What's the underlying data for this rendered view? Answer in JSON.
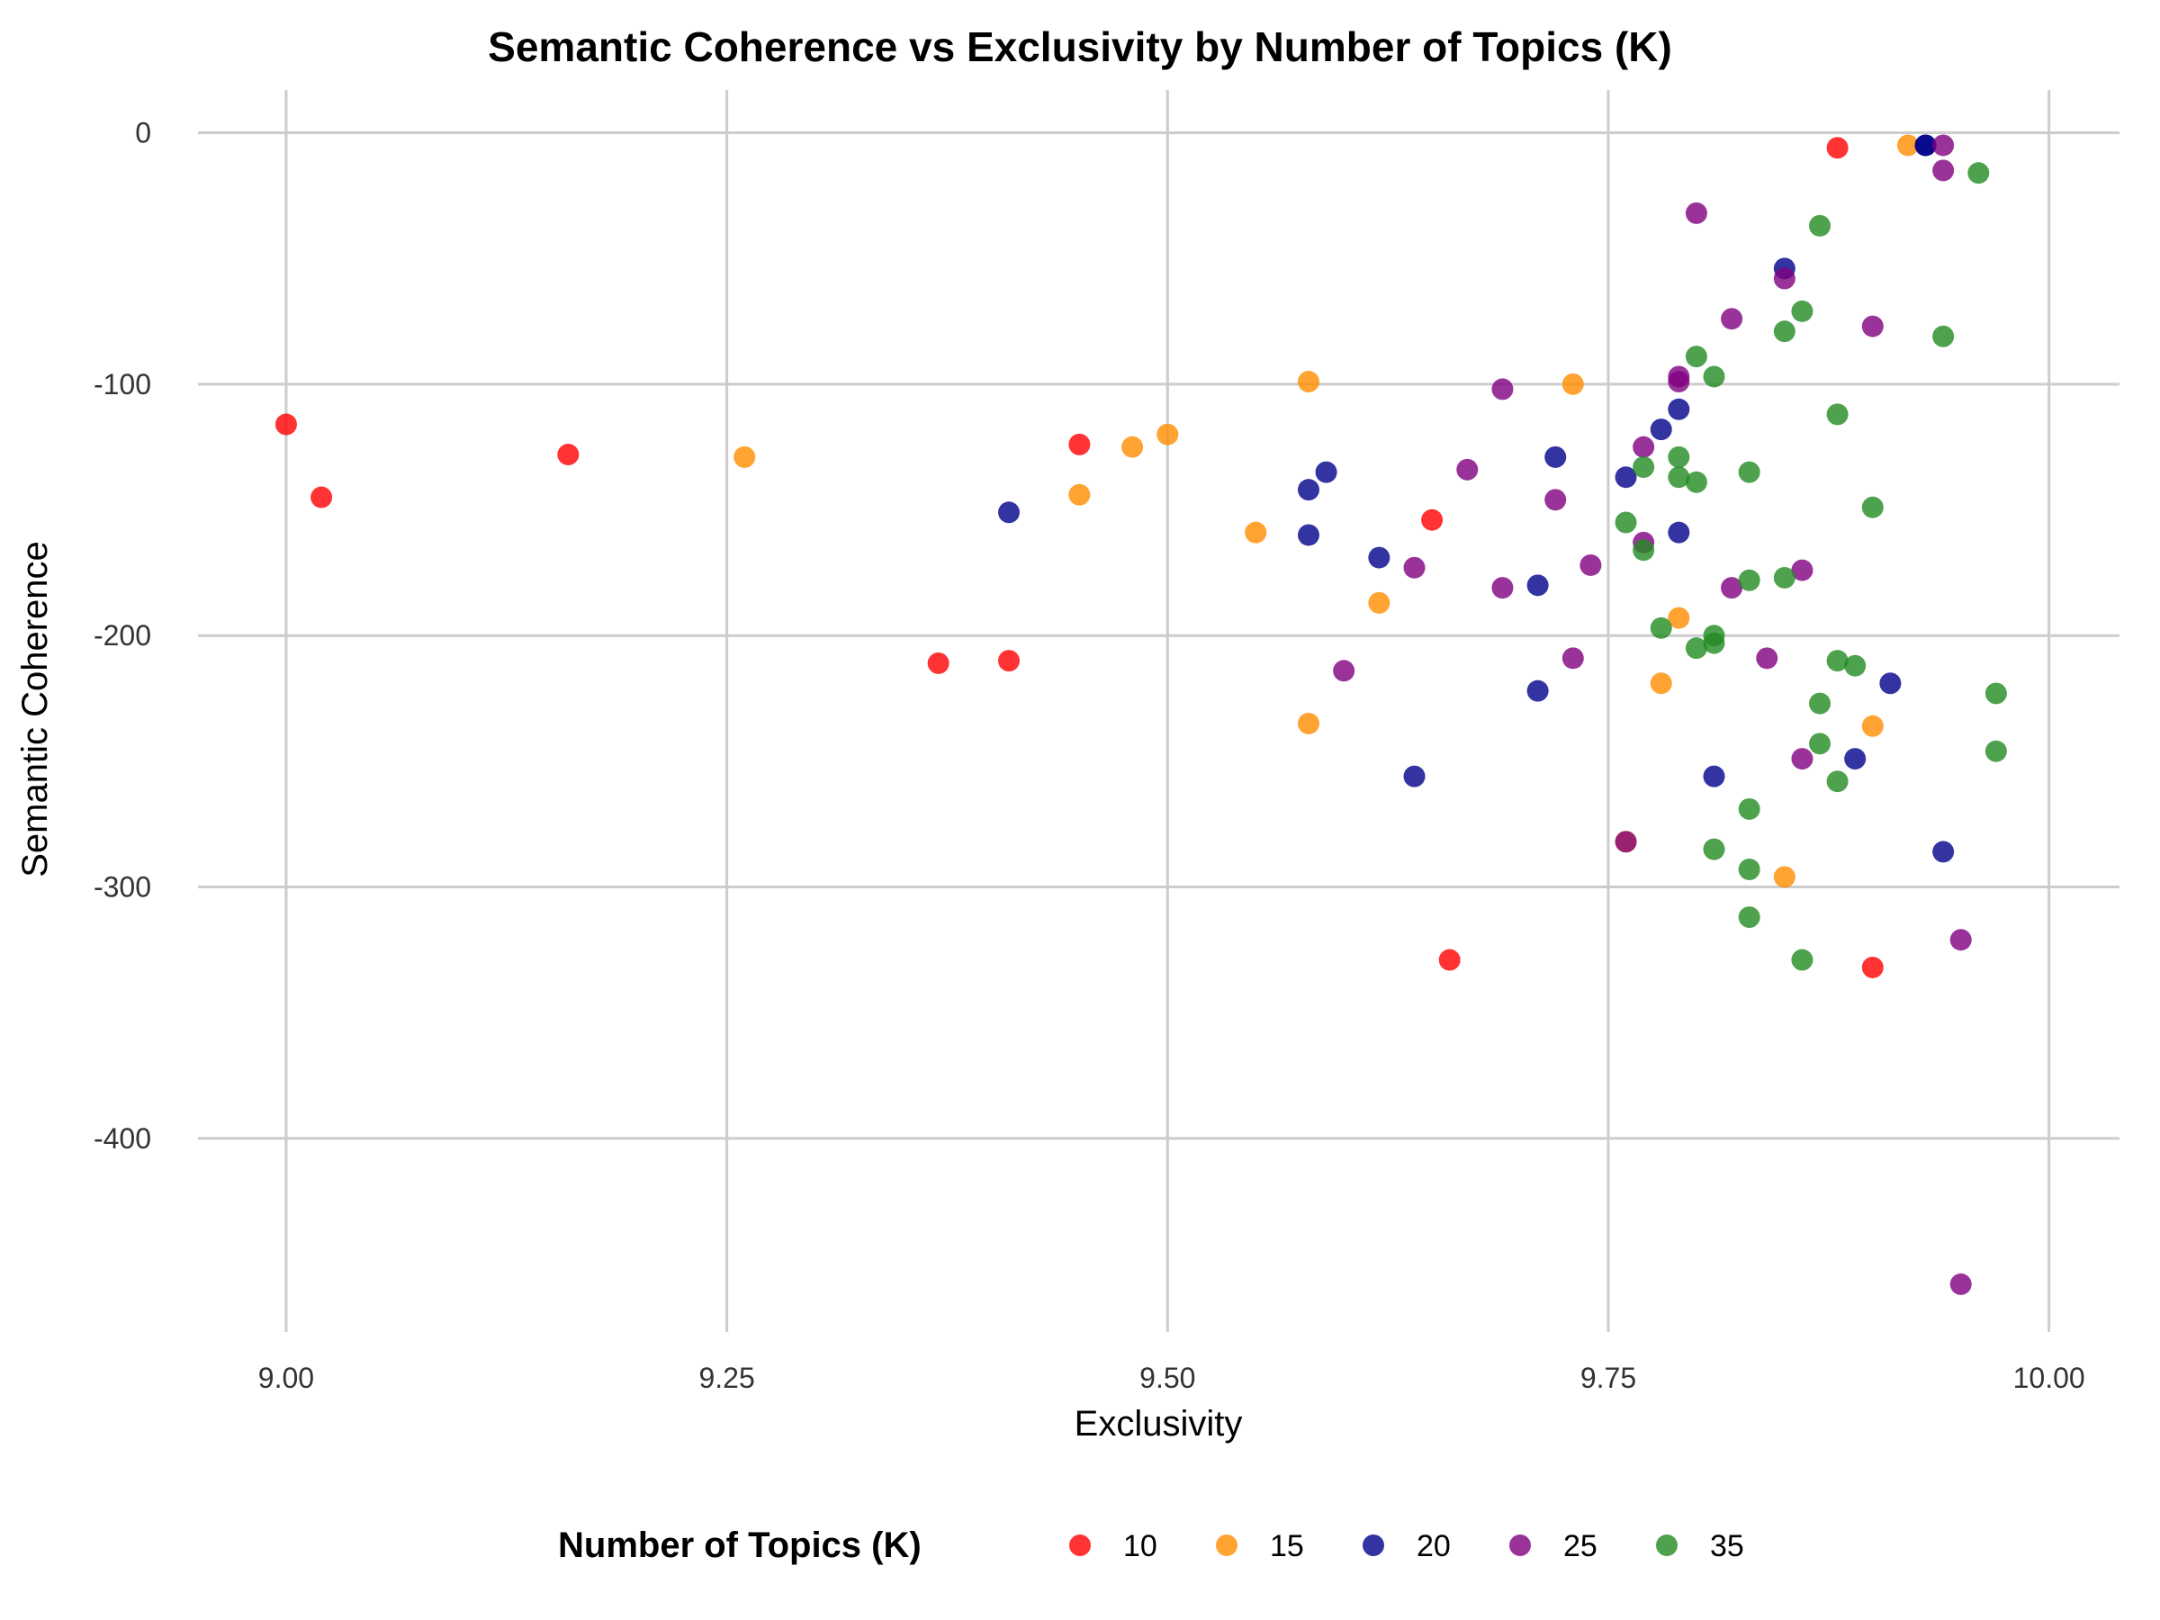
{
  "chart_data": {
    "type": "scatter",
    "title": "Semantic Coherence vs Exclusivity by Number of Topics (K)",
    "xlabel": "Exclusivity",
    "ylabel": "Semantic Coherence",
    "xlim": [
      8.95,
      10.04
    ],
    "ylim": [
      -477,
      17
    ],
    "x_ticks": [
      9.0,
      9.25,
      9.5,
      9.75,
      10.0
    ],
    "x_tick_labels": [
      "9.00",
      "9.25",
      "9.50",
      "9.75",
      "10.00"
    ],
    "y_ticks": [
      0,
      -100,
      -200,
      -300,
      -400
    ],
    "y_tick_labels": [
      "0",
      "-100",
      "-200",
      "-300",
      "-400"
    ],
    "grid": true,
    "legend_title": "Number of Topics (K)",
    "legend_position": "bottom",
    "series": [
      {
        "name": "10",
        "color": "#ff0000",
        "points": [
          [
            9.0,
            -116
          ],
          [
            9.02,
            -145
          ],
          [
            9.16,
            -128
          ],
          [
            9.37,
            -211
          ],
          [
            9.41,
            -210
          ],
          [
            9.45,
            -124
          ],
          [
            9.65,
            -154
          ],
          [
            9.66,
            -329
          ],
          [
            9.88,
            -6
          ],
          [
            9.9,
            -332
          ]
        ]
      },
      {
        "name": "15",
        "color": "#ff8c00",
        "points": [
          [
            9.26,
            -129
          ],
          [
            9.45,
            -144
          ],
          [
            9.48,
            -125
          ],
          [
            9.5,
            -120
          ],
          [
            9.55,
            -159
          ],
          [
            9.58,
            -99
          ],
          [
            9.58,
            -235
          ],
          [
            9.62,
            -187
          ],
          [
            9.73,
            -100
          ],
          [
            9.76,
            -282
          ],
          [
            9.78,
            -219
          ],
          [
            9.79,
            -193
          ],
          [
            9.85,
            -296
          ],
          [
            9.9,
            -236
          ],
          [
            9.92,
            -5
          ]
        ]
      },
      {
        "name": "20",
        "color": "#00008b",
        "points": [
          [
            9.41,
            -151
          ],
          [
            9.58,
            -160
          ],
          [
            9.58,
            -142
          ],
          [
            9.59,
            -135
          ],
          [
            9.62,
            -169
          ],
          [
            9.64,
            -256
          ],
          [
            9.71,
            -180
          ],
          [
            9.71,
            -222
          ],
          [
            9.72,
            -129
          ],
          [
            9.76,
            -137
          ],
          [
            9.78,
            -118
          ],
          [
            9.79,
            -110
          ],
          [
            9.79,
            -159
          ],
          [
            9.81,
            -256
          ],
          [
            9.85,
            -54
          ],
          [
            9.89,
            -249
          ],
          [
            9.91,
            -219
          ],
          [
            9.93,
            -5
          ],
          [
            9.93,
            -5
          ],
          [
            9.94,
            -286
          ]
        ]
      },
      {
        "name": "25",
        "color": "#800080",
        "points": [
          [
            9.6,
            -214
          ],
          [
            9.64,
            -173
          ],
          [
            9.67,
            -134
          ],
          [
            9.69,
            -102
          ],
          [
            9.69,
            -181
          ],
          [
            9.72,
            -146
          ],
          [
            9.73,
            -209
          ],
          [
            9.74,
            -172
          ],
          [
            9.76,
            -282
          ],
          [
            9.77,
            -125
          ],
          [
            9.77,
            -163
          ],
          [
            9.79,
            -97
          ],
          [
            9.79,
            -99
          ],
          [
            9.8,
            -32
          ],
          [
            9.82,
            -181
          ],
          [
            9.82,
            -74
          ],
          [
            9.84,
            -209
          ],
          [
            9.85,
            -58
          ],
          [
            9.86,
            -174
          ],
          [
            9.86,
            -249
          ],
          [
            9.9,
            -77
          ],
          [
            9.94,
            -5
          ],
          [
            9.94,
            -15
          ],
          [
            9.95,
            -321
          ],
          [
            9.95,
            -458
          ]
        ]
      },
      {
        "name": "35",
        "color": "#228b22",
        "points": [
          [
            9.76,
            -155
          ],
          [
            9.77,
            -133
          ],
          [
            9.77,
            -166
          ],
          [
            9.78,
            -197
          ],
          [
            9.79,
            -137
          ],
          [
            9.79,
            -129
          ],
          [
            9.8,
            -89
          ],
          [
            9.8,
            -139
          ],
          [
            9.8,
            -205
          ],
          [
            9.81,
            -97
          ],
          [
            9.81,
            -203
          ],
          [
            9.81,
            -200
          ],
          [
            9.81,
            -285
          ],
          [
            9.83,
            -312
          ],
          [
            9.83,
            -135
          ],
          [
            9.83,
            -178
          ],
          [
            9.83,
            -293
          ],
          [
            9.83,
            -269
          ],
          [
            9.85,
            -79
          ],
          [
            9.85,
            -177
          ],
          [
            9.86,
            -71
          ],
          [
            9.86,
            -329
          ],
          [
            9.87,
            -37
          ],
          [
            9.87,
            -227
          ],
          [
            9.87,
            -243
          ],
          [
            9.88,
            -112
          ],
          [
            9.88,
            -210
          ],
          [
            9.88,
            -258
          ],
          [
            9.89,
            -212
          ],
          [
            9.9,
            -149
          ],
          [
            9.94,
            -81
          ],
          [
            9.96,
            -16
          ],
          [
            9.97,
            -246
          ],
          [
            9.97,
            -223
          ]
        ]
      }
    ]
  }
}
